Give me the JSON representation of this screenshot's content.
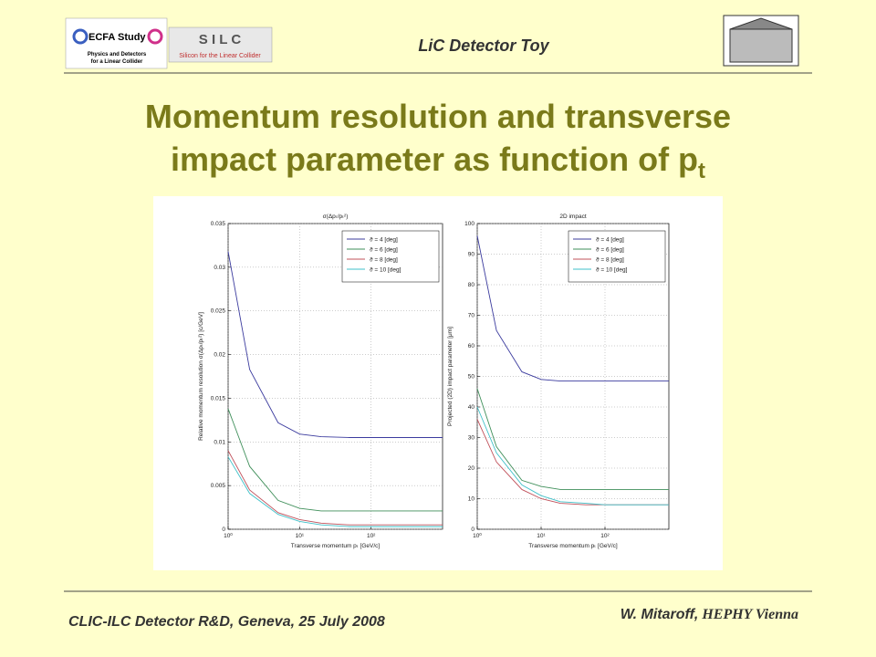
{
  "header": {
    "title": "LiC Detector Toy",
    "logo_ecfa": [
      "ECFA Study",
      "Physics and Detectors",
      "for a Linear Collider"
    ],
    "logo_silc": [
      "S I L C",
      "Silicon for the Linear Collider"
    ]
  },
  "slide_title": {
    "lines": [
      "Momentum resolution and transverse",
      "impact parameter as function of p"
    ],
    "subscript": "t"
  },
  "footer": {
    "left": "CLIC-ILC Detector R&D, Geneva, 25 July 2008",
    "author": "W. Mitaroff,",
    "institute": "HEPHY Vienna"
  },
  "chart_data": [
    {
      "type": "line",
      "title": "σ(Δpₜ/pₜ²)",
      "xlabel": "Transverse momentum pₜ [GeV/c]",
      "ylabel": "Relative momentum resolution σ(Δpₜ/pₜ²) [c/GeV]",
      "xscale": "log",
      "grid": true,
      "legend": "upper right",
      "x": [
        1,
        2,
        5,
        10,
        20,
        50,
        100,
        1000
      ],
      "xlim": [
        1,
        1000
      ],
      "xticks": [
        {
          "value": 1,
          "label": "10⁰"
        },
        {
          "value": 10,
          "label": "10¹"
        },
        {
          "value": 100,
          "label": "10²"
        }
      ],
      "ylim": [
        0,
        0.035
      ],
      "yticks": [
        0,
        0.005,
        0.01,
        0.015,
        0.02,
        0.025,
        0.03,
        0.035
      ],
      "series": [
        {
          "name": "ϑ = 4 [deg]",
          "color": "#3b3b9e",
          "values": [
            0.0318,
            0.0183,
            0.0122,
            0.0109,
            0.0106,
            0.0105,
            0.0105,
            0.0105
          ]
        },
        {
          "name": "ϑ = 6 [deg]",
          "color": "#3f8f5a",
          "values": [
            0.0138,
            0.0072,
            0.0033,
            0.0024,
            0.0021,
            0.0021,
            0.0021,
            0.0021
          ]
        },
        {
          "name": "ϑ = 8 [deg]",
          "color": "#c0505a",
          "values": [
            0.009,
            0.0045,
            0.0019,
            0.0011,
            0.0007,
            0.0005,
            0.0005,
            0.0005
          ]
        },
        {
          "name": "ϑ = 10 [deg]",
          "color": "#3fc0c8",
          "values": [
            0.0083,
            0.0041,
            0.0017,
            0.0009,
            0.0005,
            0.0003,
            0.0003,
            0.0003
          ]
        }
      ]
    },
    {
      "type": "line",
      "title": "2D impact",
      "xlabel": "Transverse momentum pₜ [GeV/c]",
      "ylabel": "Projected (2D) impact parameter [μm]",
      "xscale": "log",
      "grid": true,
      "legend": "upper right",
      "x": [
        1,
        2,
        5,
        10,
        20,
        50,
        100,
        1000
      ],
      "xlim": [
        1,
        1000
      ],
      "xticks": [
        {
          "value": 1,
          "label": "10⁰"
        },
        {
          "value": 10,
          "label": "10¹"
        },
        {
          "value": 100,
          "label": "10²"
        }
      ],
      "ylim": [
        0,
        100
      ],
      "yticks": [
        0,
        10,
        20,
        30,
        40,
        50,
        60,
        70,
        80,
        90,
        100
      ],
      "series": [
        {
          "name": "ϑ = 4 [deg]",
          "color": "#3b3b9e",
          "values": [
            96,
            65,
            51.5,
            49,
            48.5,
            48.5,
            48.5,
            48.5
          ]
        },
        {
          "name": "ϑ = 6 [deg]",
          "color": "#3f8f5a",
          "values": [
            46,
            27,
            16,
            14,
            13,
            13,
            13,
            13
          ]
        },
        {
          "name": "ϑ = 8 [deg]",
          "color": "#c0505a",
          "values": [
            36,
            22,
            13,
            10,
            8.5,
            8,
            8,
            8
          ]
        },
        {
          "name": "ϑ = 10 [deg]",
          "color": "#3fc0c8",
          "values": [
            40,
            25,
            14.5,
            11,
            9,
            8.5,
            8,
            8
          ]
        }
      ]
    }
  ]
}
